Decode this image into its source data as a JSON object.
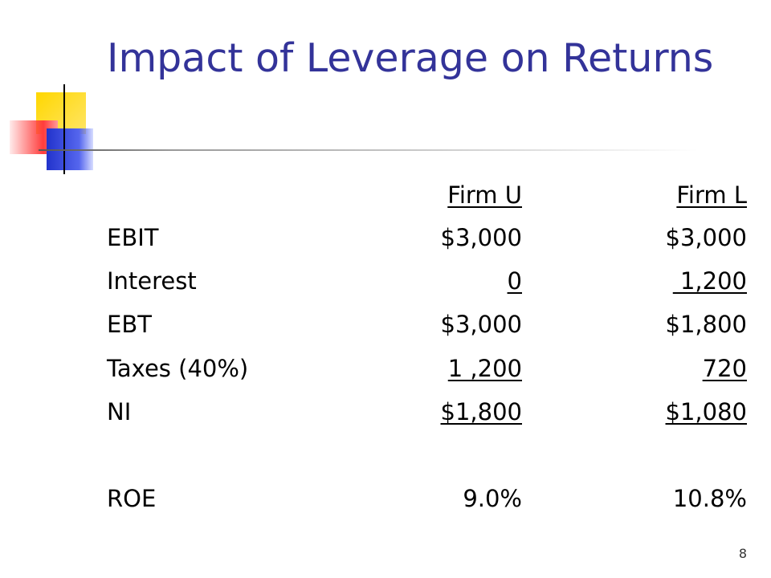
{
  "title": "Impact of Leverage on Returns",
  "table": {
    "header": [
      "Firm U",
      "Firm L"
    ],
    "rows": [
      [
        "EBIT",
        "$3,000",
        "$3,000"
      ],
      [
        "Interest",
        "0",
        " 1,200"
      ],
      [
        "EBT",
        "$3,000",
        "$1,800"
      ],
      [
        "Taxes (40%)",
        "1 ,200",
        "720"
      ],
      [
        "NI",
        "$1,800",
        "$1,080"
      ],
      [
        "ROE",
        "9.0%",
        "10.8%"
      ]
    ]
  },
  "page_number": "8"
}
